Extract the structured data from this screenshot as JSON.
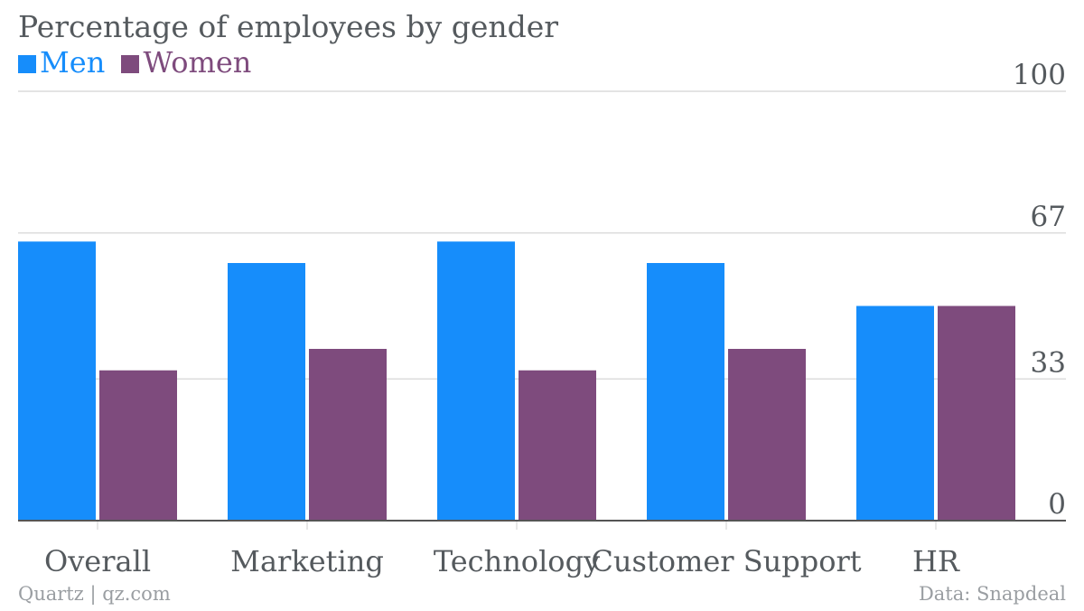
{
  "title": "Percentage of employees by gender",
  "source_left": "Quartz | qz.com",
  "source_right": "Data: Snapdeal",
  "colors": {
    "men": "#168dfb",
    "women": "#7e4b7d",
    "grid": "#dcdcdc",
    "axis": "#555555",
    "tick": "#555a5e"
  },
  "chart_data": {
    "type": "bar",
    "categories": [
      "Overall",
      "Marketing",
      "Technology",
      "Customer Support",
      "HR"
    ],
    "series": [
      {
        "name": "Men",
        "values": [
          65,
          60,
          65,
          60,
          50
        ]
      },
      {
        "name": "Women",
        "values": [
          35,
          40,
          35,
          40,
          50
        ]
      }
    ],
    "ylim": [
      0,
      100
    ],
    "yticks": [
      0,
      33,
      67,
      100
    ],
    "grid": true,
    "legend": "top-left"
  }
}
